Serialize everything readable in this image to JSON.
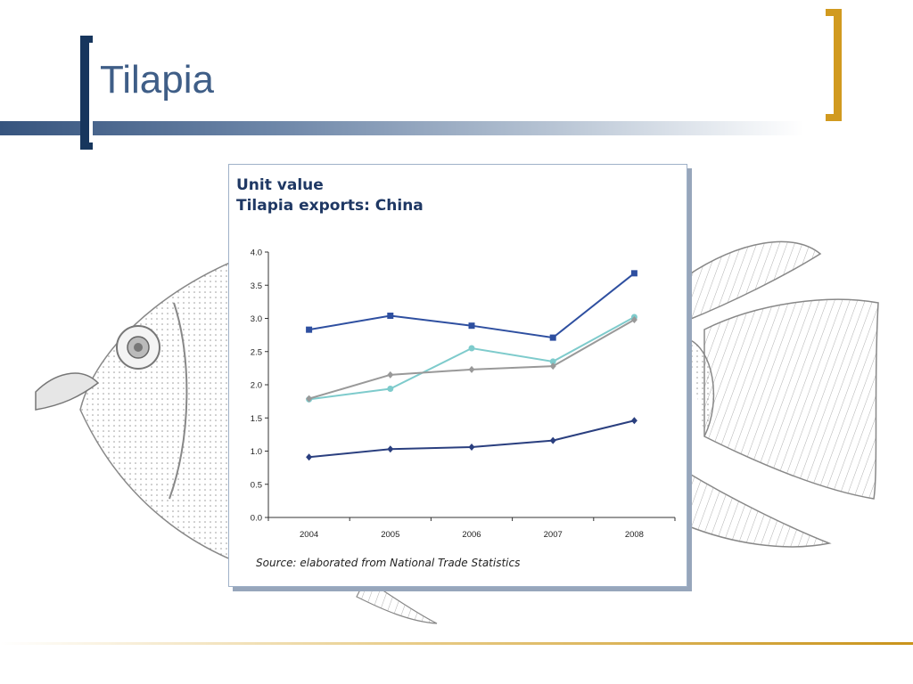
{
  "slide": {
    "title": "Tilapia"
  },
  "colors": {
    "title_text": "#3f5e87",
    "left_bracket": "#17365d",
    "right_bracket": "#d19a1f"
  },
  "chart_data": {
    "type": "line",
    "title": "Unit value",
    "subtitle": "Tilapia exports: China",
    "xlabel": "",
    "ylabel": "",
    "categories": [
      "2004",
      "2005",
      "2006",
      "2007",
      "2008"
    ],
    "ylim": [
      0,
      4.0
    ],
    "yticks": [
      "0.0",
      "0.5",
      "1.0",
      "1.5",
      "2.0",
      "2.5",
      "3.0",
      "3.5",
      "4.0"
    ],
    "grid": false,
    "legend": "none",
    "series": [
      {
        "color": "#2e4fa0",
        "marker": "square",
        "values": [
          2.83,
          3.04,
          2.89,
          2.71,
          3.68
        ]
      },
      {
        "color": "#7ecbcc",
        "marker": "circle",
        "values": [
          1.78,
          1.94,
          2.55,
          2.35,
          3.02
        ]
      },
      {
        "color": "#999999",
        "marker": "diamond",
        "values": [
          1.79,
          2.15,
          2.23,
          2.28,
          2.98
        ]
      },
      {
        "color": "#2a3f7f",
        "marker": "diamond",
        "values": [
          0.91,
          1.03,
          1.06,
          1.16,
          1.46
        ]
      }
    ],
    "source": "Source: elaborated from National Trade Statistics"
  }
}
